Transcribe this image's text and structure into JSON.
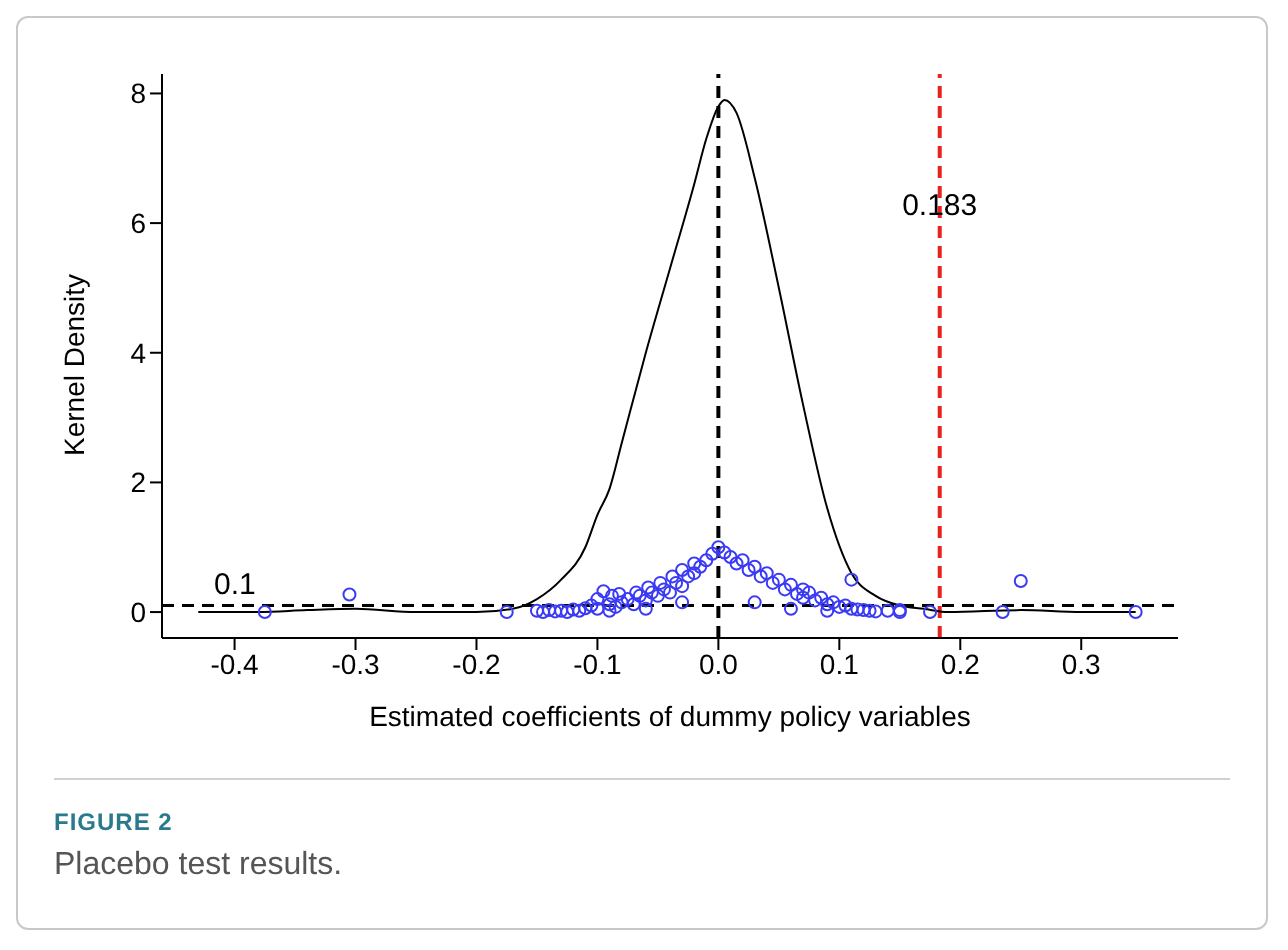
{
  "chart_data": {
    "type": "scatter",
    "title": "FIGURE 2",
    "subtitle": "Placebo test results.",
    "xlabel": "Estimated coefficients of dummy policy variables",
    "ylabel": "Kernel Density",
    "xlim": [
      -0.46,
      0.38
    ],
    "ylim": [
      -0.4,
      8.3
    ],
    "xticks": [
      -0.4,
      -0.3,
      -0.2,
      -0.1,
      {
        "value": 0,
        "label": "0.0"
      },
      0.1,
      0.2,
      0.3
    ],
    "yticks": [
      0,
      2,
      4,
      6,
      8
    ],
    "grid": false,
    "ref_lines": [
      {
        "axis": "x",
        "value": 0,
        "label": null,
        "color": "#000000",
        "line_style": "dashed"
      },
      {
        "axis": "x",
        "value": 0.183,
        "label": "0.183",
        "color": "#e8221e",
        "line_style": "dashed"
      },
      {
        "axis": "y",
        "value": 0.1,
        "label": "0.1",
        "color": "#000000",
        "line_style": "dashed"
      }
    ],
    "series": [
      {
        "type": "line",
        "color": "#000000",
        "marker": "none",
        "line_style": "solid",
        "x": [
          -0.43,
          -0.38,
          -0.34,
          -0.3,
          -0.25,
          -0.2,
          -0.17,
          -0.15,
          -0.13,
          -0.11,
          -0.1,
          -0.09,
          -0.08,
          -0.06,
          -0.04,
          -0.02,
          -0.01,
          0,
          0.005,
          0.015,
          0.03,
          0.05,
          0.07,
          0.09,
          0.11,
          0.13,
          0.15,
          0.17,
          0.19,
          0.25,
          0.3,
          0.345
        ],
        "values": [
          0,
          0,
          0.03,
          0.05,
          0,
          0,
          0.05,
          0.2,
          0.5,
          1.0,
          1.5,
          1.9,
          2.6,
          4.0,
          5.3,
          6.6,
          7.3,
          7.8,
          7.9,
          7.7,
          6.7,
          5.0,
          3.2,
          1.6,
          0.6,
          0.25,
          0.1,
          0.05,
          0,
          0.03,
          0,
          0
        ]
      },
      {
        "color": "#3a3af5",
        "marker": "circle",
        "x": [
          -0.375,
          -0.305,
          -0.175,
          -0.15,
          -0.145,
          -0.14,
          -0.135,
          -0.13,
          -0.125,
          -0.12,
          -0.115,
          -0.11,
          -0.105,
          -0.1,
          -0.1,
          -0.095,
          -0.09,
          -0.09,
          -0.088,
          -0.085,
          -0.082,
          -0.08,
          -0.075,
          -0.07,
          -0.068,
          -0.065,
          -0.06,
          -0.06,
          -0.058,
          -0.055,
          -0.05,
          -0.048,
          -0.045,
          -0.04,
          -0.038,
          -0.035,
          -0.03,
          -0.03,
          -0.03,
          -0.025,
          -0.02,
          -0.02,
          -0.015,
          -0.01,
          -0.005,
          0,
          0.005,
          0.01,
          0.015,
          0.02,
          0.025,
          0.03,
          0.03,
          0.035,
          0.04,
          0.045,
          0.05,
          0.055,
          0.06,
          0.06,
          0.065,
          0.07,
          0.07,
          0.075,
          0.08,
          0.085,
          0.09,
          0.09,
          0.095,
          0.1,
          0.105,
          0.11,
          0.11,
          0.115,
          0.12,
          0.125,
          0.13,
          0.14,
          0.15,
          0.15,
          0.175,
          0.235,
          0.25,
          0.345
        ],
        "values": [
          0,
          0.27,
          0,
          0.02,
          0,
          0.03,
          0.01,
          0.02,
          0,
          0.04,
          0.02,
          0.06,
          0.1,
          0.05,
          0.2,
          0.32,
          0.12,
          0.02,
          0.25,
          0.08,
          0.28,
          0.15,
          0.2,
          0.12,
          0.3,
          0.25,
          0.18,
          0.05,
          0.38,
          0.3,
          0.25,
          0.45,
          0.35,
          0.3,
          0.55,
          0.45,
          0.4,
          0.65,
          0.15,
          0.55,
          0.6,
          0.75,
          0.7,
          0.8,
          0.9,
          1.0,
          0.92,
          0.85,
          0.75,
          0.8,
          0.65,
          0.7,
          0.15,
          0.55,
          0.6,
          0.45,
          0.5,
          0.35,
          0.42,
          0.05,
          0.28,
          0.35,
          0.22,
          0.3,
          0.18,
          0.22,
          0.12,
          0.02,
          0.15,
          0.08,
          0.1,
          0.05,
          0.5,
          0.04,
          0.03,
          0.02,
          0.01,
          0.02,
          0,
          0.03,
          0,
          0,
          0.48,
          0
        ]
      }
    ]
  }
}
